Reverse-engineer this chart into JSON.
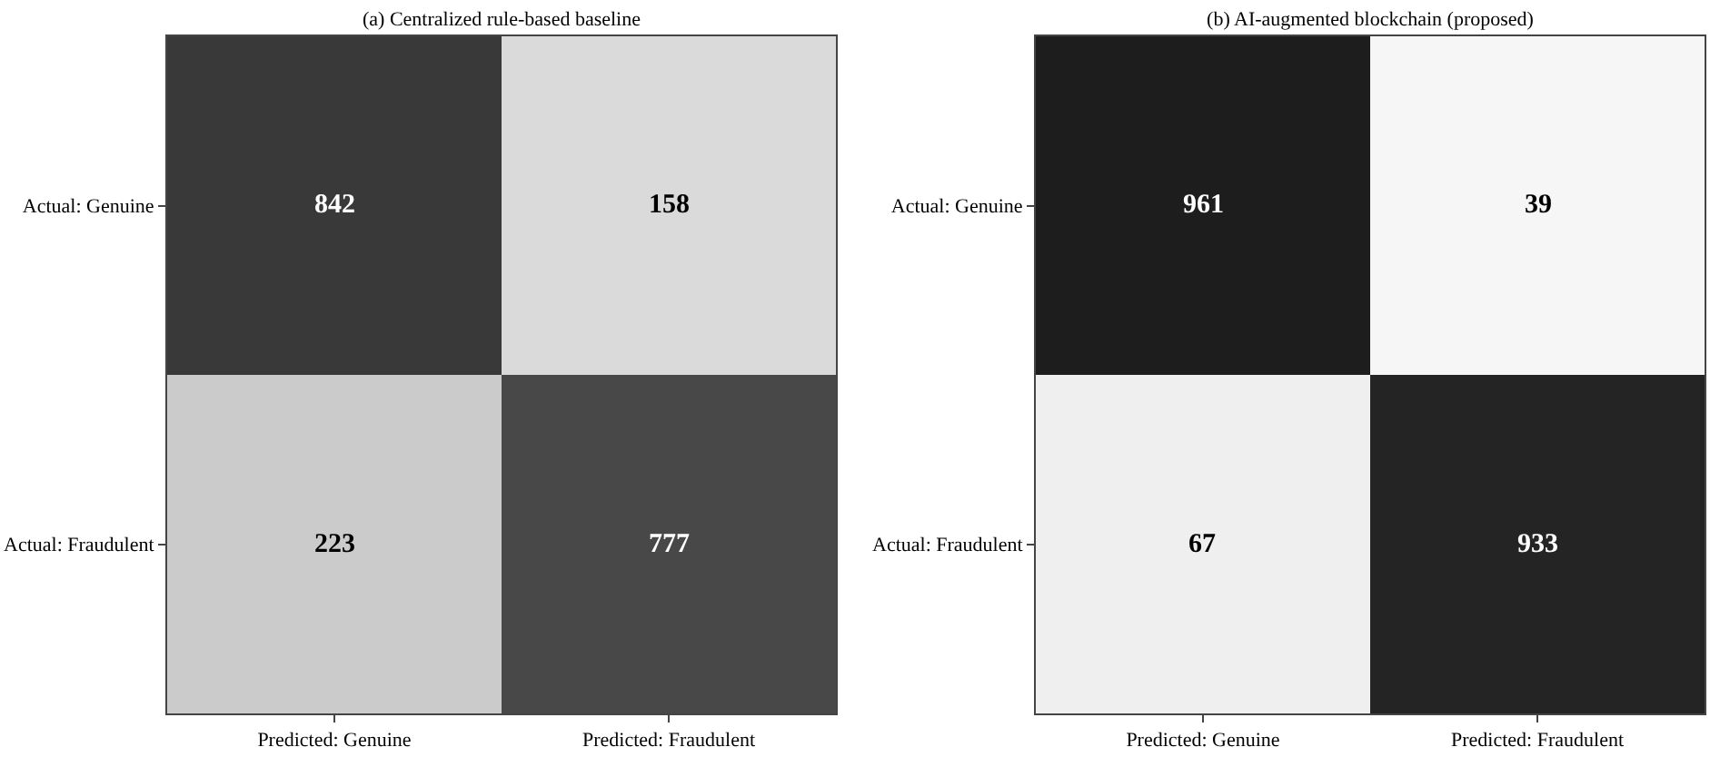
{
  "chart_data": [
    {
      "type": "heatmap",
      "title": "(a) Centralized rule-based baseline",
      "categories": [
        "Predicted: Genuine",
        "Predicted: Fraudulent"
      ],
      "y_categories": [
        "Actual: Genuine",
        "Actual: Fraudulent"
      ],
      "cells": [
        [
          842,
          158
        ],
        [
          223,
          777
        ]
      ],
      "data_labels": true
    },
    {
      "type": "heatmap",
      "title": "(b) AI-augmented blockchain (proposed)",
      "categories": [
        "Predicted: Genuine",
        "Predicted: Fraudulent"
      ],
      "y_categories": [
        "Actual: Genuine",
        "Actual: Fraudulent"
      ],
      "cells": [
        [
          961,
          39
        ],
        [
          67,
          933
        ]
      ],
      "data_labels": true
    }
  ]
}
